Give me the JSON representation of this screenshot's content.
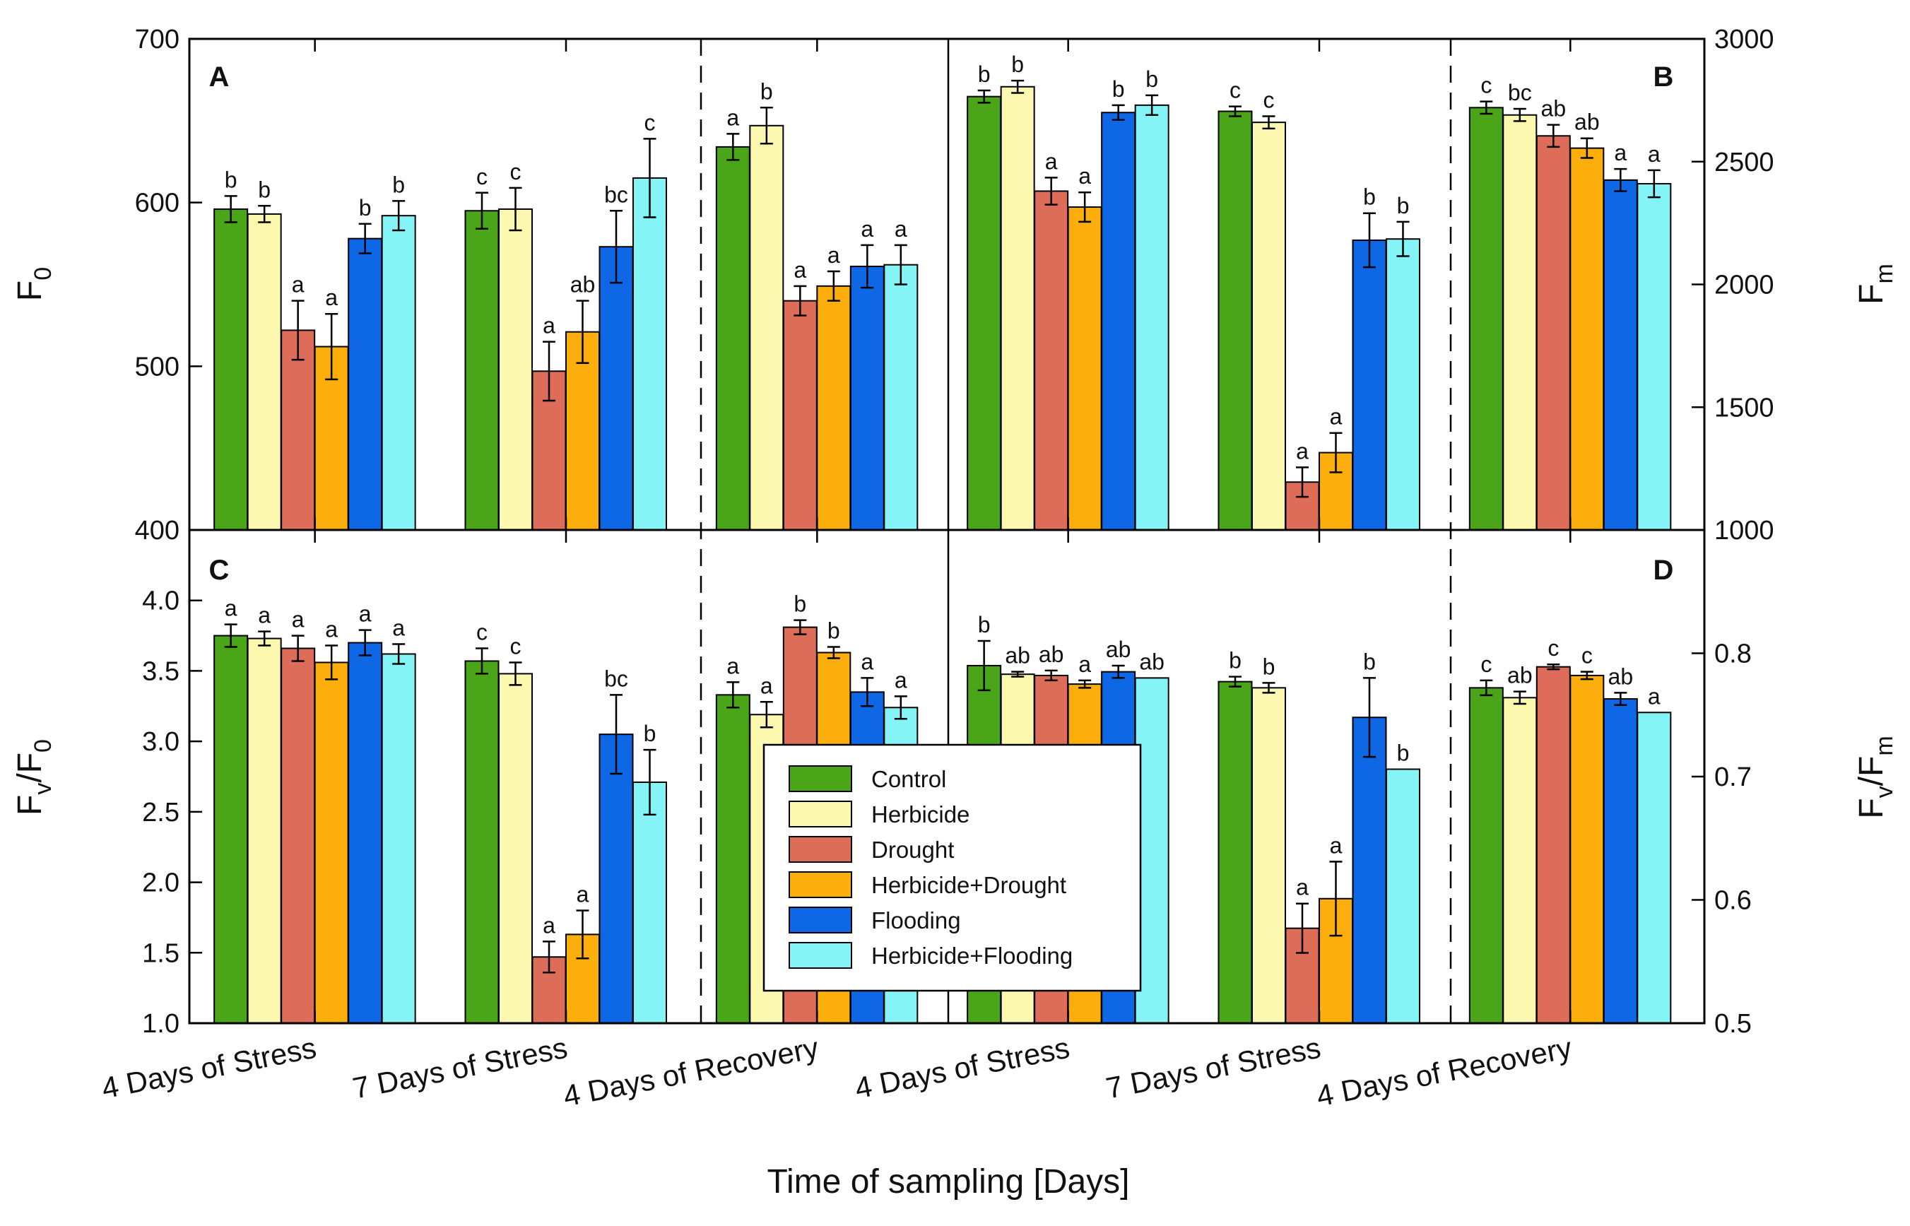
{
  "chart_data": {
    "type": "bar",
    "xlabel": "Time of sampling [Days]",
    "categories": [
      "4 Days of Stress",
      "7 Days of Stress",
      "4 Days of Recovery"
    ],
    "series_names": [
      "Control",
      "Herbicide",
      "Drought",
      "Herbicide+Drought",
      "Flooding",
      "Herbicide+Flooding"
    ],
    "series_colors": [
      "#4aa518",
      "#fdf8b0",
      "#dd6c58",
      "#fbae0c",
      "#0e67e5",
      "#85f4f6"
    ],
    "legend_position": "center",
    "panels": [
      {
        "letter": "A",
        "ylabel": "F0",
        "ylim": [
          400,
          700
        ],
        "yticks": [
          "400",
          "500",
          "600",
          "700"
        ],
        "values": [
          [
            596,
            593,
            522,
            512,
            578,
            592
          ],
          [
            595,
            596,
            497,
            521,
            573,
            615
          ],
          [
            634,
            647,
            540,
            549,
            561,
            562
          ]
        ],
        "errors": [
          [
            8,
            5,
            18,
            20,
            9,
            9
          ],
          [
            11,
            13,
            18,
            19,
            22,
            24
          ],
          [
            8,
            11,
            9,
            9,
            13,
            12
          ]
        ],
        "sig": [
          [
            "b",
            "b",
            "a",
            "a",
            "b",
            "b"
          ],
          [
            "c",
            "c",
            "a",
            "ab",
            "bc",
            "c"
          ],
          [
            "a",
            "b",
            "a",
            "a",
            "a",
            "a"
          ]
        ]
      },
      {
        "letter": "B",
        "ylabel": "Fm",
        "ylim": [
          1000,
          3000
        ],
        "yticks": [
          "1000",
          "1500",
          "2000",
          "2500",
          "3000"
        ],
        "values": [
          [
            2765,
            2805,
            2380,
            2315,
            2700,
            2730
          ],
          [
            2705,
            2660,
            1195,
            1315,
            2180,
            2185
          ],
          [
            2720,
            2690,
            2605,
            2555,
            2425,
            2410
          ]
        ],
        "errors": [
          [
            25,
            25,
            55,
            60,
            30,
            40
          ],
          [
            20,
            25,
            60,
            80,
            110,
            70
          ],
          [
            25,
            25,
            45,
            40,
            45,
            55
          ]
        ],
        "sig": [
          [
            "b",
            "b",
            "a",
            "a",
            "b",
            "b"
          ],
          [
            "c",
            "c",
            "a",
            "a",
            "b",
            "b"
          ],
          [
            "c",
            "bc",
            "ab",
            "ab",
            "a",
            "a"
          ]
        ]
      },
      {
        "letter": "C",
        "ylabel": "Fv/F0",
        "ylim": [
          1.0,
          4.5
        ],
        "yticks": [
          "1.0",
          "1.5",
          "2.0",
          "2.5",
          "3.0",
          "3.5",
          "4.0"
        ],
        "values": [
          [
            3.75,
            3.73,
            3.66,
            3.56,
            3.7,
            3.62
          ],
          [
            3.57,
            3.48,
            1.47,
            1.63,
            3.05,
            2.71
          ],
          [
            3.33,
            3.19,
            3.81,
            3.63,
            3.35,
            3.24
          ]
        ],
        "errors": [
          [
            0.08,
            0.05,
            0.09,
            0.12,
            0.09,
            0.07
          ],
          [
            0.09,
            0.08,
            0.11,
            0.17,
            0.28,
            0.23
          ],
          [
            0.09,
            0.09,
            0.05,
            0.04,
            0.1,
            0.08
          ]
        ],
        "sig": [
          [
            "a",
            "a",
            "a",
            "a",
            "a",
            "a"
          ],
          [
            "c",
            "c",
            "a",
            "a",
            "bc",
            "b"
          ],
          [
            "a",
            "a",
            "b",
            "b",
            "a",
            "a"
          ]
        ]
      },
      {
        "letter": "D",
        "ylabel": "Fv/Fm",
        "ylim": [
          0.5,
          0.9
        ],
        "yticks": [
          "0.5",
          "0.6",
          "0.7",
          "0.8"
        ],
        "values": [
          [
            0.79,
            0.783,
            0.782,
            0.775,
            0.785,
            0.78
          ],
          [
            0.777,
            0.772,
            0.577,
            0.601,
            0.748,
            0.706
          ],
          [
            0.772,
            0.764,
            0.789,
            0.782,
            0.763,
            0.752
          ]
        ],
        "errors": [
          [
            0.02,
            0.002,
            0.004,
            0.003,
            0.005,
            0.0
          ],
          [
            0.004,
            0.004,
            0.02,
            0.03,
            0.032,
            0.0
          ],
          [
            0.006,
            0.005,
            0.002,
            0.003,
            0.005,
            0.0
          ]
        ],
        "sig": [
          [
            "b",
            "ab",
            "ab",
            "a",
            "ab",
            "ab"
          ],
          [
            "b",
            "b",
            "a",
            "a",
            "b",
            "b"
          ],
          [
            "c",
            "ab",
            "c",
            "c",
            "ab",
            "a"
          ]
        ]
      }
    ]
  }
}
